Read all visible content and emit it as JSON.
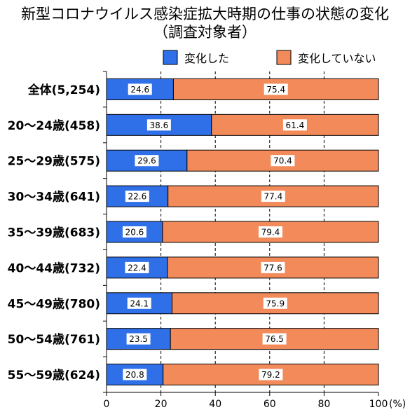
{
  "title": "新型コロナウイルス感染症拡大時期の仕事の状態の変化",
  "subtitle": "（調査対象者）",
  "chart_data": {
    "type": "bar",
    "orientation": "horizontal",
    "stacked": true,
    "categories": [
      "全体(5,254)",
      "20～24歳(458)",
      "25～29歳(575)",
      "30～34歳(641)",
      "35～39歳(683)",
      "40～44歳(732)",
      "45～49歳(780)",
      "50～54歳(761)",
      "55～59歳(624)"
    ],
    "series": [
      {
        "name": "変化した",
        "color": "#2F6FE8",
        "values": [
          24.6,
          38.6,
          29.6,
          22.6,
          20.6,
          22.4,
          24.1,
          23.5,
          20.8
        ]
      },
      {
        "name": "変化していない",
        "color": "#F28A5A",
        "values": [
          75.4,
          61.4,
          70.4,
          77.4,
          79.4,
          77.6,
          75.9,
          76.5,
          79.2
        ]
      }
    ],
    "xlim": [
      0,
      100
    ],
    "xticks": [
      0,
      20,
      40,
      60,
      80,
      100
    ],
    "xunit": "(%)",
    "grid": "vertical dashed",
    "legend_position": "top"
  }
}
